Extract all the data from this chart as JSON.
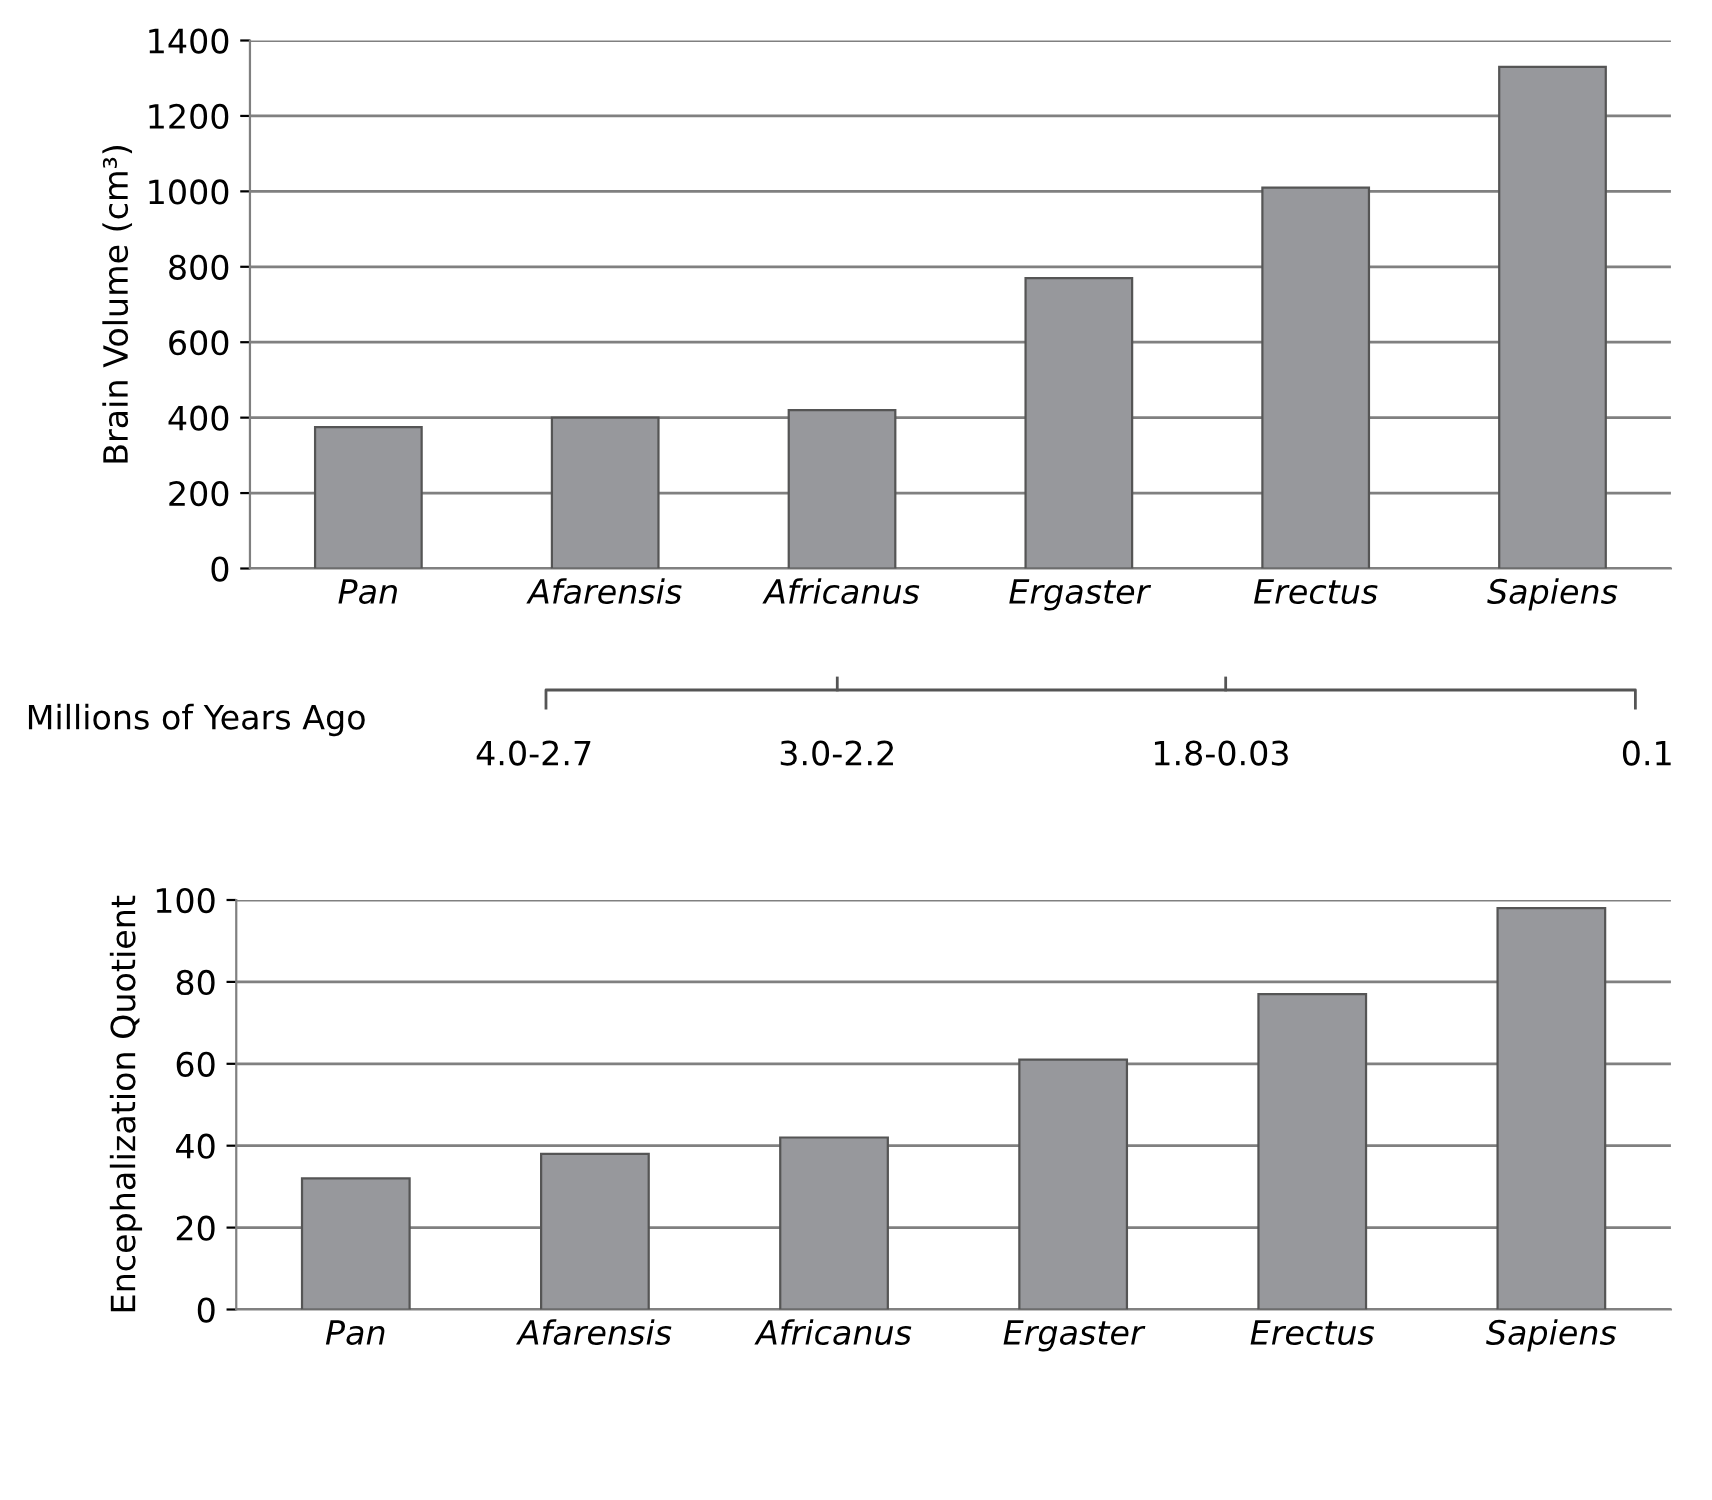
{
  "chart_data": [
    {
      "type": "bar",
      "ylabel": "Brain Volume (cm³)",
      "categories": [
        "Pan",
        "Afarensis",
        "Africanus",
        "Ergaster",
        "Erectus",
        "Sapiens"
      ],
      "values": [
        375,
        400,
        420,
        770,
        1010,
        1330
      ],
      "color": "#97989c",
      "ylim": [
        0,
        1400
      ],
      "yticks": [
        0,
        200,
        400,
        600,
        800,
        1000,
        1200,
        1400
      ],
      "grid": "y",
      "annotations": [
        "Millions of Years Ago",
        "4.0-2.7",
        "3.0-2.2",
        "1.8-0.03",
        "0.1"
      ]
    },
    {
      "type": "bar",
      "ylabel": "Encephalization Quotient",
      "categories": [
        "Pan",
        "Afarensis",
        "Africanus",
        "Ergaster",
        "Erectus",
        "Sapiens"
      ],
      "values": [
        32,
        38,
        42,
        61,
        77,
        98
      ],
      "color": "#97989c",
      "ylim": [
        0,
        100
      ],
      "yticks": [
        0,
        20,
        40,
        60,
        80,
        100
      ],
      "grid": "y"
    }
  ]
}
